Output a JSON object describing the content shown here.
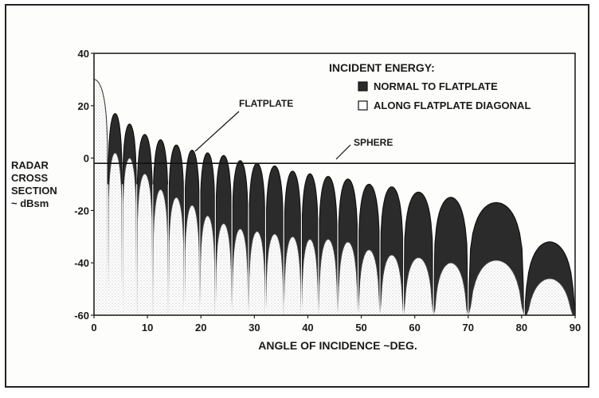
{
  "chart_data": {
    "type": "line",
    "xlabel": "ANGLE OF INCIDENCE  ~DEG.",
    "ylabel": [
      "RADAR",
      "CROSS",
      "SECTION",
      "~ dBsm"
    ],
    "xlim": [
      0,
      90
    ],
    "ylim": [
      -60,
      40
    ],
    "x_ticks": [
      "0",
      "10",
      "20",
      "30",
      "40",
      "50",
      "60",
      "70",
      "80",
      "90"
    ],
    "y_ticks": [
      "40",
      "20",
      "0",
      "-20",
      "-40",
      "-60"
    ],
    "legend": {
      "title": "INCIDENT ENERGY:",
      "position": "top-right",
      "entries": [
        {
          "label": "NORMAL TO FLATPLATE",
          "color": "#2b2b2b"
        },
        {
          "label": "ALONG FLATPLATE DIAGONAL",
          "color": "#ffffff"
        }
      ]
    },
    "annotations": [
      "FLATPLATE",
      "SPHERE"
    ],
    "series": [
      {
        "name": "NORMAL TO FLATPLATE",
        "lobe_x": [
          1.5,
          3.7,
          6.5,
          9.5,
          12.5,
          15.4,
          18.4,
          21.3,
          24.2,
          27.5,
          30.5,
          33.8,
          37.2,
          40.4,
          43.7,
          47.5,
          51.5,
          55.5,
          60.5,
          66.5,
          73.0,
          84.0
        ],
        "lobe_peak": [
          30,
          17,
          13,
          9,
          7,
          5,
          3,
          2,
          1,
          -1,
          -2,
          -3,
          -5,
          -6,
          -7,
          -8,
          -10,
          -11,
          -13,
          -15,
          -17,
          -32
        ],
        "null_x": [
          2.6,
          5.3,
          8.0,
          11.0,
          13.9,
          16.9,
          19.8,
          22.7,
          25.8,
          28.9,
          32.1,
          35.5,
          38.8,
          42.0,
          45.6,
          49.4,
          53.5,
          57.9,
          63.5,
          70.0,
          80.5,
          90.0
        ]
      },
      {
        "name": "ALONG FLATPLATE DIAGONAL",
        "lobe_x": [
          1.5,
          3.7,
          6.5,
          9.5,
          12.5,
          15.4,
          18.4,
          21.3,
          24.2,
          27.5,
          30.5,
          33.8,
          37.2,
          40.4,
          43.7,
          47.5,
          51.5,
          55.5,
          60.5,
          66.5,
          73.0,
          84.0
        ],
        "lobe_peak": [
          30,
          2,
          0,
          -6,
          -12,
          -15,
          -18,
          -22,
          -25,
          -27,
          -28,
          -29,
          -30,
          -31,
          -31,
          -32,
          -35,
          -37,
          -38,
          -40,
          -39,
          -46
        ],
        "null_x": [
          2.6,
          5.3,
          8.0,
          11.0,
          13.9,
          16.9,
          19.8,
          22.7,
          25.8,
          28.9,
          32.1,
          35.5,
          38.8,
          42.0,
          45.6,
          49.4,
          53.5,
          57.9,
          63.5,
          70.0,
          80.5,
          90.0
        ]
      },
      {
        "name": "SPHERE",
        "x": [
          0,
          90
        ],
        "y": [
          -2,
          -2
        ]
      }
    ]
  }
}
